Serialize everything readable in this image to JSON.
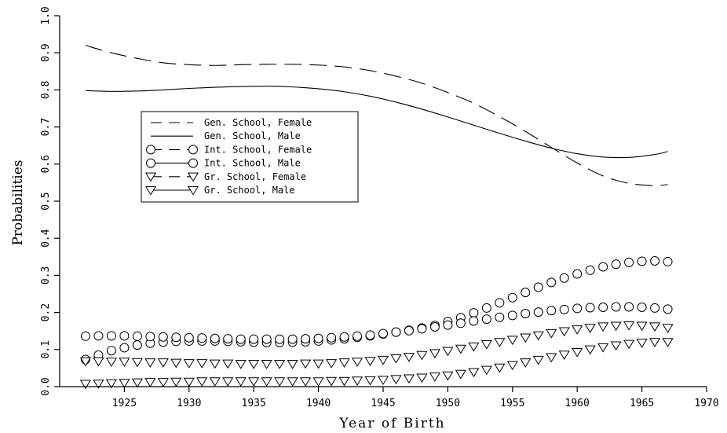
{
  "chart_data": {
    "type": "line",
    "xlabel": "Year of Birth",
    "ylabel": "Probabilities",
    "xlim": [
      1920,
      1970
    ],
    "ylim": [
      0.0,
      1.0
    ],
    "xticks": [
      "1925",
      "1930",
      "1935",
      "1940",
      "1945",
      "1950",
      "1955",
      "1960",
      "1965",
      "1970"
    ],
    "yticks": [
      "0.0",
      "0.1",
      "0.2",
      "0.3",
      "0.4",
      "0.5",
      "0.6",
      "0.7",
      "0.8",
      "0.9",
      "1.0"
    ],
    "grid": false,
    "legend_placement": "upper-left",
    "series": [
      {
        "name": "Gen. School, Female",
        "line": "dashed",
        "marker": "none",
        "x": [
          1922,
          1924,
          1926,
          1928,
          1930,
          1932,
          1934,
          1936,
          1938,
          1940,
          1942,
          1944,
          1946,
          1948,
          1950,
          1952,
          1954,
          1956,
          1958,
          1960,
          1962,
          1964,
          1966,
          1967
        ],
        "y": [
          0.92,
          0.9,
          0.885,
          0.873,
          0.868,
          0.866,
          0.868,
          0.869,
          0.869,
          0.867,
          0.862,
          0.852,
          0.837,
          0.818,
          0.793,
          0.764,
          0.728,
          0.688,
          0.645,
          0.603,
          0.568,
          0.548,
          0.542,
          0.545
        ]
      },
      {
        "name": "Gen. School, Male",
        "line": "solid",
        "marker": "none",
        "x": [
          1922,
          1924,
          1926,
          1928,
          1930,
          1932,
          1934,
          1936,
          1938,
          1940,
          1942,
          1944,
          1946,
          1948,
          1950,
          1952,
          1954,
          1956,
          1958,
          1960,
          1962,
          1964,
          1966,
          1967
        ],
        "y": [
          0.798,
          0.796,
          0.797,
          0.8,
          0.804,
          0.807,
          0.809,
          0.81,
          0.808,
          0.803,
          0.795,
          0.783,
          0.767,
          0.748,
          0.727,
          0.705,
          0.683,
          0.662,
          0.643,
          0.628,
          0.619,
          0.618,
          0.626,
          0.634
        ]
      },
      {
        "name": "Int. School, Female",
        "line": "dashed",
        "marker": "circle",
        "x": [
          1922,
          1923,
          1924,
          1925,
          1926,
          1927,
          1928,
          1929,
          1930,
          1931,
          1932,
          1933,
          1934,
          1935,
          1936,
          1937,
          1938,
          1939,
          1940,
          1941,
          1942,
          1943,
          1944,
          1945,
          1946,
          1947,
          1948,
          1949,
          1950,
          1951,
          1952,
          1953,
          1954,
          1955,
          1956,
          1957,
          1958,
          1959,
          1960,
          1961,
          1962,
          1963,
          1964,
          1965,
          1966,
          1967
        ],
        "y": [
          0.073,
          0.085,
          0.097,
          0.105,
          0.112,
          0.117,
          0.12,
          0.122,
          0.123,
          0.123,
          0.123,
          0.122,
          0.121,
          0.12,
          0.119,
          0.119,
          0.12,
          0.121,
          0.123,
          0.126,
          0.129,
          0.133,
          0.137,
          0.142,
          0.147,
          0.152,
          0.158,
          0.165,
          0.175,
          0.186,
          0.199,
          0.212,
          0.226,
          0.24,
          0.254,
          0.268,
          0.281,
          0.293,
          0.304,
          0.314,
          0.323,
          0.33,
          0.335,
          0.338,
          0.339,
          0.337
        ]
      },
      {
        "name": "Int. School, Male",
        "line": "solid",
        "marker": "circle",
        "x": [
          1922,
          1923,
          1924,
          1925,
          1926,
          1927,
          1928,
          1929,
          1930,
          1931,
          1932,
          1933,
          1934,
          1935,
          1936,
          1937,
          1938,
          1939,
          1940,
          1941,
          1942,
          1943,
          1944,
          1945,
          1946,
          1947,
          1948,
          1949,
          1950,
          1951,
          1952,
          1953,
          1954,
          1955,
          1956,
          1957,
          1958,
          1959,
          1960,
          1961,
          1962,
          1963,
          1964,
          1965,
          1966,
          1967
        ],
        "y": [
          0.136,
          0.137,
          0.137,
          0.137,
          0.136,
          0.135,
          0.134,
          0.133,
          0.132,
          0.131,
          0.13,
          0.129,
          0.128,
          0.128,
          0.128,
          0.128,
          0.128,
          0.129,
          0.13,
          0.132,
          0.134,
          0.136,
          0.139,
          0.143,
          0.147,
          0.151,
          0.156,
          0.161,
          0.166,
          0.171,
          0.177,
          0.182,
          0.187,
          0.192,
          0.197,
          0.201,
          0.205,
          0.208,
          0.211,
          0.213,
          0.214,
          0.215,
          0.215,
          0.214,
          0.212,
          0.209
        ]
      },
      {
        "name": "Gr. School, Female",
        "line": "dashed",
        "marker": "triangle-down",
        "x": [
          1922,
          1923,
          1924,
          1925,
          1926,
          1927,
          1928,
          1929,
          1930,
          1931,
          1932,
          1933,
          1934,
          1935,
          1936,
          1937,
          1938,
          1939,
          1940,
          1941,
          1942,
          1943,
          1944,
          1945,
          1946,
          1947,
          1948,
          1949,
          1950,
          1951,
          1952,
          1953,
          1954,
          1955,
          1956,
          1957,
          1958,
          1959,
          1960,
          1961,
          1962,
          1963,
          1964,
          1965,
          1966,
          1967
        ],
        "y": [
          0.007,
          0.008,
          0.009,
          0.01,
          0.011,
          0.012,
          0.012,
          0.013,
          0.013,
          0.014,
          0.014,
          0.014,
          0.014,
          0.014,
          0.014,
          0.014,
          0.014,
          0.014,
          0.014,
          0.015,
          0.015,
          0.016,
          0.017,
          0.018,
          0.02,
          0.022,
          0.024,
          0.027,
          0.03,
          0.034,
          0.039,
          0.045,
          0.051,
          0.058,
          0.065,
          0.072,
          0.079,
          0.086,
          0.093,
          0.1,
          0.106,
          0.111,
          0.115,
          0.118,
          0.12,
          0.12
        ]
      },
      {
        "name": "Gr. School, Male",
        "line": "solid",
        "marker": "triangle-down",
        "x": [
          1922,
          1923,
          1924,
          1925,
          1926,
          1927,
          1928,
          1929,
          1930,
          1931,
          1932,
          1933,
          1934,
          1935,
          1936,
          1937,
          1938,
          1939,
          1940,
          1941,
          1942,
          1943,
          1944,
          1945,
          1946,
          1947,
          1948,
          1949,
          1950,
          1951,
          1952,
          1953,
          1954,
          1955,
          1956,
          1957,
          1958,
          1959,
          1960,
          1961,
          1962,
          1963,
          1964,
          1965,
          1966,
          1967
        ],
        "y": [
          0.068,
          0.068,
          0.067,
          0.067,
          0.066,
          0.065,
          0.065,
          0.064,
          0.063,
          0.063,
          0.062,
          0.062,
          0.061,
          0.061,
          0.061,
          0.061,
          0.061,
          0.062,
          0.062,
          0.063,
          0.065,
          0.067,
          0.069,
          0.072,
          0.076,
          0.08,
          0.085,
          0.09,
          0.096,
          0.102,
          0.108,
          0.114,
          0.12,
          0.126,
          0.132,
          0.138,
          0.144,
          0.149,
          0.154,
          0.158,
          0.162,
          0.164,
          0.165,
          0.164,
          0.162,
          0.158
        ]
      }
    ]
  }
}
